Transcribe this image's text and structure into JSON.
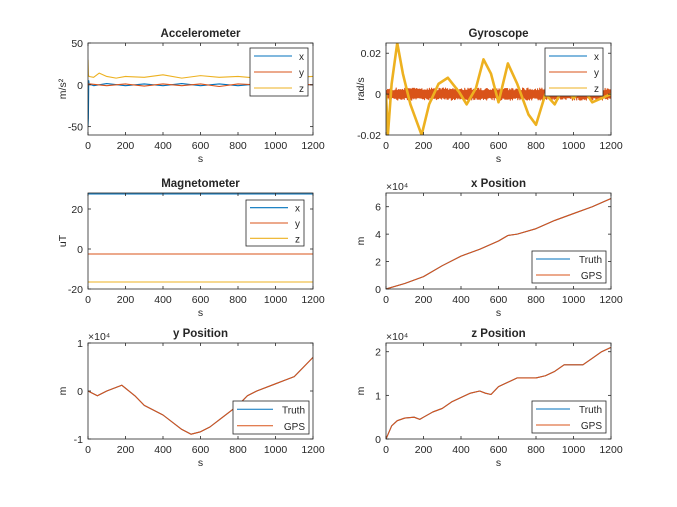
{
  "figure": {
    "background": "#ffffff"
  },
  "colors": {
    "x": "#0072BD",
    "y": "#D95319",
    "z": "#EDB120",
    "truth": "#0072BD",
    "gps": "#D95319",
    "axis": "#262626"
  },
  "chart_data": [
    {
      "type": "line",
      "title": "Accelerometer",
      "xlabel": "s",
      "ylabel": "m/s²",
      "xlim": [
        0,
        1200
      ],
      "ylim": [
        -60,
        50
      ],
      "xticks": [
        0,
        200,
        400,
        600,
        800,
        1000,
        1200
      ],
      "yticks": [
        -50,
        0,
        50
      ],
      "ytick_labels": [
        "-50",
        "0",
        "50"
      ],
      "exponent_label": "",
      "legend": "top-right",
      "series": [
        {
          "name": "x",
          "color_key": "x",
          "x": [
            0,
            2,
            4,
            6,
            10,
            30,
            100,
            200,
            300,
            400,
            500,
            600,
            700,
            800,
            900,
            1000,
            1100,
            1200
          ],
          "y": [
            -50,
            -40,
            5,
            0.3,
            0.5,
            -1,
            1.5,
            -1,
            1,
            -1,
            1.5,
            -1,
            1,
            -1,
            1,
            -1,
            0.5,
            0
          ]
        },
        {
          "name": "y",
          "color_key": "y",
          "x": [
            0,
            4,
            10,
            100,
            200,
            300,
            400,
            500,
            600,
            700,
            800,
            900,
            1000,
            1100,
            1200
          ],
          "y": [
            2,
            0,
            1,
            -1,
            1,
            -1.5,
            1,
            -1,
            1,
            -2,
            1,
            0,
            -1,
            1,
            0
          ]
        },
        {
          "name": "z",
          "color_key": "z",
          "x": [
            0,
            2,
            5,
            10,
            30,
            60,
            100,
            150,
            200,
            300,
            400,
            500,
            600,
            700,
            800,
            900,
            1000,
            1100,
            1200
          ],
          "y": [
            30,
            12,
            10,
            9.8,
            9,
            14,
            10,
            8,
            10,
            9,
            12,
            8,
            11,
            9,
            10,
            8,
            11,
            9,
            10
          ]
        }
      ]
    },
    {
      "type": "line",
      "title": "Gyroscope",
      "xlabel": "s",
      "ylabel": "rad/s",
      "xlim": [
        0,
        1200
      ],
      "ylim": [
        -0.02,
        0.025
      ],
      "xticks": [
        0,
        200,
        400,
        600,
        800,
        1000,
        1200
      ],
      "yticks": [
        -0.02,
        0,
        0.02
      ],
      "ytick_labels": [
        "-0.02",
        "0",
        "0.02"
      ],
      "exponent_label": "",
      "legend": "top-right",
      "series": [
        {
          "name": "x",
          "color_key": "x",
          "noise_amplitude": 0.001,
          "x": [
            0,
            1200
          ],
          "y": [
            0,
            0
          ]
        },
        {
          "name": "y",
          "color_key": "y",
          "noise_amplitude": 0.003,
          "x": [
            0,
            1200
          ],
          "y": [
            0,
            0
          ]
        },
        {
          "name": "z",
          "color_key": "z",
          "x": [
            0,
            10,
            30,
            60,
            90,
            130,
            190,
            230,
            280,
            330,
            390,
            430,
            480,
            520,
            560,
            600,
            650,
            700,
            760,
            800,
            850,
            900,
            950,
            1000,
            1050,
            1100,
            1150,
            1200
          ],
          "y": [
            0,
            -0.02,
            0.005,
            0.025,
            0.01,
            -0.005,
            -0.02,
            -0.005,
            0.005,
            0.008,
            0.001,
            -0.005,
            0.003,
            0.017,
            0.01,
            -0.004,
            0.015,
            0.005,
            -0.01,
            -0.015,
            0,
            -0.005,
            0.004,
            -0.002,
            0.003,
            -0.004,
            -0.002,
            0
          ]
        }
      ]
    },
    {
      "type": "line",
      "title": "Magnetometer",
      "xlabel": "s",
      "ylabel": "uT",
      "xlim": [
        0,
        1200
      ],
      "ylim": [
        -20,
        28
      ],
      "xticks": [
        0,
        200,
        400,
        600,
        800,
        1000,
        1200
      ],
      "yticks": [
        -20,
        0,
        20
      ],
      "ytick_labels": [
        "-20",
        "0",
        "20"
      ],
      "exponent_label": "",
      "legend": "top-right",
      "series": [
        {
          "name": "x",
          "color_key": "x",
          "x": [
            0,
            1200
          ],
          "y": [
            27.5,
            27.5
          ]
        },
        {
          "name": "y",
          "color_key": "y",
          "x": [
            0,
            1200
          ],
          "y": [
            -2.5,
            -2.5
          ]
        },
        {
          "name": "z",
          "color_key": "z",
          "x": [
            0,
            1200
          ],
          "y": [
            -16.5,
            -16.5
          ]
        }
      ]
    },
    {
      "type": "line",
      "title": "x Position",
      "xlabel": "s",
      "ylabel": "m",
      "xlim": [
        0,
        1200
      ],
      "ylim": [
        0,
        70000
      ],
      "xticks": [
        0,
        200,
        400,
        600,
        800,
        1000,
        1200
      ],
      "yticks": [
        0,
        20000,
        40000,
        60000
      ],
      "ytick_labels": [
        "0",
        "2",
        "4",
        "6"
      ],
      "exponent_label": "×10⁴",
      "legend": "bottom-right",
      "series": [
        {
          "name": "Truth",
          "color_key": "truth",
          "x": [
            0,
            100,
            200,
            300,
            400,
            500,
            600,
            650,
            700,
            800,
            900,
            1000,
            1100,
            1200
          ],
          "y": [
            0,
            4000,
            9000,
            17000,
            24000,
            29000,
            35000,
            39000,
            40000,
            44000,
            50000,
            55000,
            60000,
            66000
          ]
        },
        {
          "name": "GPS",
          "color_key": "gps",
          "x": [
            0,
            100,
            200,
            300,
            400,
            500,
            600,
            650,
            700,
            800,
            900,
            1000,
            1100,
            1200
          ],
          "y": [
            0,
            4000,
            9000,
            17000,
            24000,
            29000,
            35000,
            39000,
            40000,
            44000,
            50000,
            55000,
            60000,
            66000
          ]
        }
      ]
    },
    {
      "type": "line",
      "title": "y Position",
      "xlabel": "s",
      "ylabel": "m",
      "xlim": [
        0,
        1200
      ],
      "ylim": [
        -10000,
        10000
      ],
      "xticks": [
        0,
        200,
        400,
        600,
        800,
        1000,
        1200
      ],
      "yticks": [
        -10000,
        0,
        10000
      ],
      "ytick_labels": [
        "-1",
        "0",
        "1"
      ],
      "exponent_label": "×10⁴",
      "legend": "bottom-right",
      "series": [
        {
          "name": "Truth",
          "color_key": "truth",
          "x": [
            0,
            50,
            100,
            180,
            250,
            300,
            400,
            500,
            550,
            600,
            650,
            700,
            800,
            850,
            900,
            1000,
            1100,
            1150,
            1200
          ],
          "y": [
            0,
            -1000,
            0,
            1200,
            -1000,
            -3000,
            -5000,
            -8000,
            -9000,
            -8500,
            -7500,
            -6000,
            -3000,
            -1000,
            0,
            1500,
            3000,
            5000,
            7000
          ]
        },
        {
          "name": "GPS",
          "color_key": "gps",
          "x": [
            0,
            50,
            100,
            180,
            250,
            300,
            400,
            500,
            550,
            600,
            650,
            700,
            800,
            850,
            900,
            1000,
            1100,
            1150,
            1200
          ],
          "y": [
            0,
            -1000,
            0,
            1200,
            -1000,
            -3000,
            -5000,
            -8000,
            -9000,
            -8500,
            -7500,
            -6000,
            -3000,
            -1000,
            0,
            1500,
            3000,
            5000,
            7000
          ]
        }
      ]
    },
    {
      "type": "line",
      "title": "z Position",
      "xlabel": "s",
      "ylabel": "m",
      "xlim": [
        0,
        1200
      ],
      "ylim": [
        0,
        22000
      ],
      "xticks": [
        0,
        200,
        400,
        600,
        800,
        1000,
        1200
      ],
      "yticks": [
        0,
        10000,
        20000
      ],
      "ytick_labels": [
        "0",
        "1",
        "2"
      ],
      "exponent_label": "×10⁴",
      "legend": "bottom-right",
      "series": [
        {
          "name": "Truth",
          "color_key": "truth",
          "x": [
            0,
            30,
            60,
            100,
            150,
            180,
            200,
            250,
            300,
            350,
            400,
            450,
            500,
            530,
            560,
            600,
            650,
            700,
            750,
            800,
            850,
            900,
            950,
            1000,
            1050,
            1100,
            1150,
            1200
          ],
          "y": [
            0,
            3000,
            4200,
            4800,
            5000,
            4500,
            5000,
            6200,
            7000,
            8500,
            9500,
            10500,
            11000,
            10500,
            10200,
            12000,
            13000,
            14000,
            14000,
            14000,
            14500,
            15500,
            17000,
            17000,
            17000,
            18500,
            20000,
            21000
          ]
        },
        {
          "name": "GPS",
          "color_key": "gps",
          "x": [
            0,
            30,
            60,
            100,
            150,
            180,
            200,
            250,
            300,
            350,
            400,
            450,
            500,
            530,
            560,
            600,
            650,
            700,
            750,
            800,
            850,
            900,
            950,
            1000,
            1050,
            1100,
            1150,
            1200
          ],
          "y": [
            0,
            3000,
            4200,
            4800,
            5000,
            4500,
            5000,
            6200,
            7000,
            8500,
            9500,
            10500,
            11000,
            10500,
            10200,
            12000,
            13000,
            14000,
            14000,
            14000,
            14500,
            15500,
            17000,
            17000,
            17000,
            18500,
            20000,
            21000
          ]
        }
      ]
    }
  ]
}
